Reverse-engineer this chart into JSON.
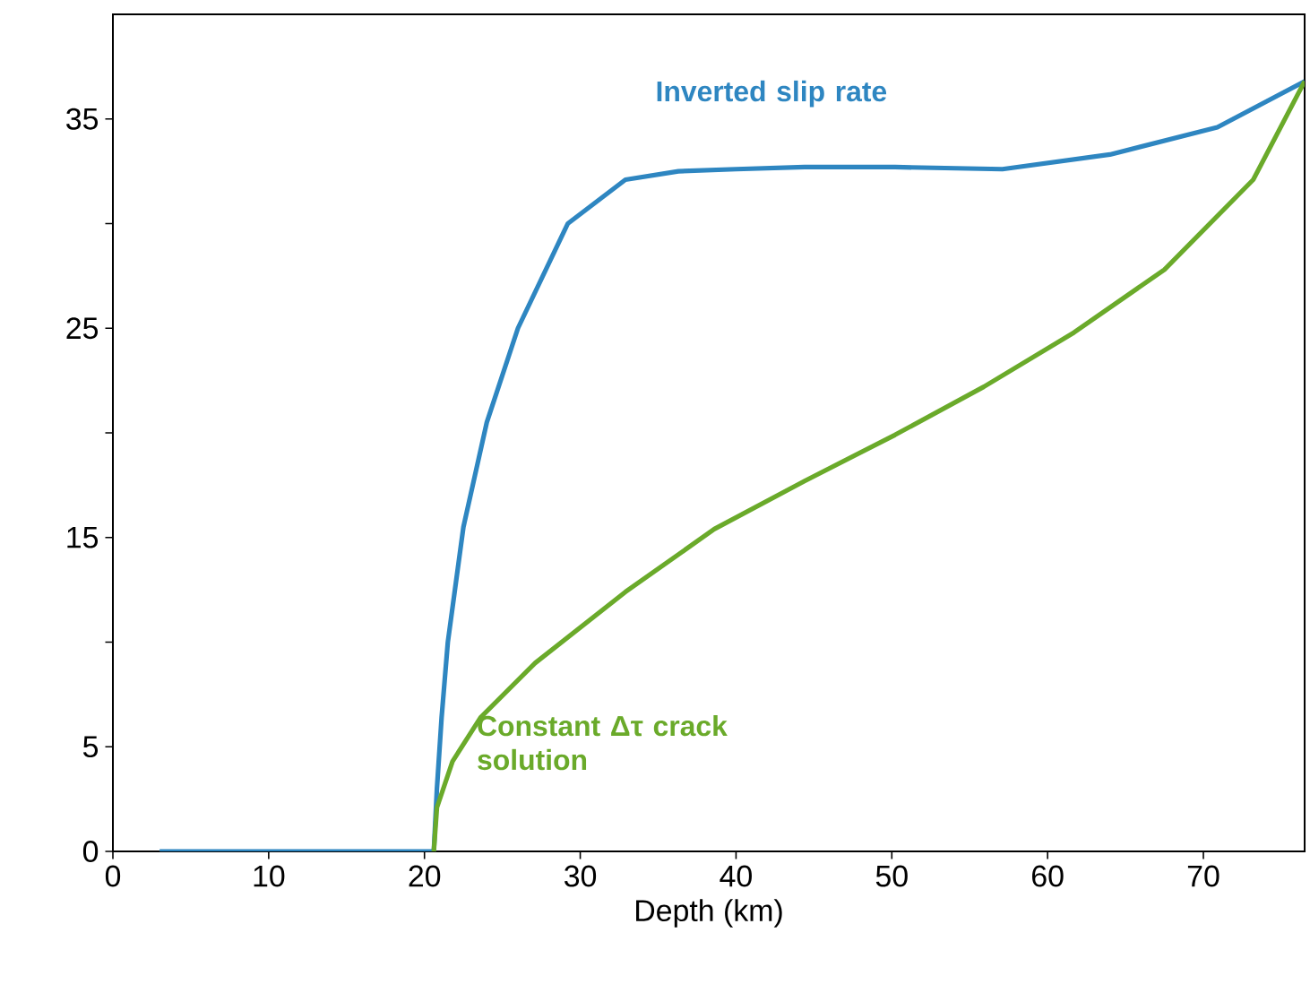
{
  "chart_data": {
    "type": "line",
    "xlabel": "Depth (km)",
    "xlim": [
      0,
      76.5
    ],
    "ylim": [
      0,
      40
    ],
    "xticks": [
      0,
      10,
      20,
      30,
      40,
      50,
      60,
      70
    ],
    "yticks": [
      0,
      5,
      {
        "value": 10,
        "label": null
      },
      15,
      {
        "value": 20,
        "label": null
      },
      25,
      {
        "value": 30,
        "label": null
      },
      35
    ],
    "legend": false,
    "grid": false,
    "marker": "none",
    "line_style": "solid",
    "series": [
      {
        "name": "Inverted slip rate",
        "color": "#2e86c1",
        "x": [
          3,
          20.6,
          20.8,
          21.1,
          21.5,
          22.5,
          24,
          26,
          29.2,
          32.9,
          36.3,
          40,
          44.4,
          50.2,
          57.1,
          64,
          70.9,
          76.5
        ],
        "values": [
          0,
          0,
          3,
          6.4,
          10,
          15.5,
          20.5,
          25,
          30,
          32.1,
          32.5,
          32.6,
          32.7,
          32.7,
          32.6,
          33.3,
          34.6,
          36.8
        ]
      },
      {
        "name": "Constant Δτ crack solution",
        "color": "#6aaa2a",
        "x": [
          20.6,
          20.8,
          21.8,
          23.6,
          27.1,
          32.9,
          38.6,
          44.4,
          50.2,
          55.9,
          61.7,
          67.5,
          73.2,
          76.5
        ],
        "values": [
          0,
          2.1,
          4.3,
          6.4,
          9,
          12.4,
          15.4,
          17.7,
          19.9,
          22.2,
          24.8,
          27.8,
          32.1,
          36.8
        ]
      }
    ]
  }
}
